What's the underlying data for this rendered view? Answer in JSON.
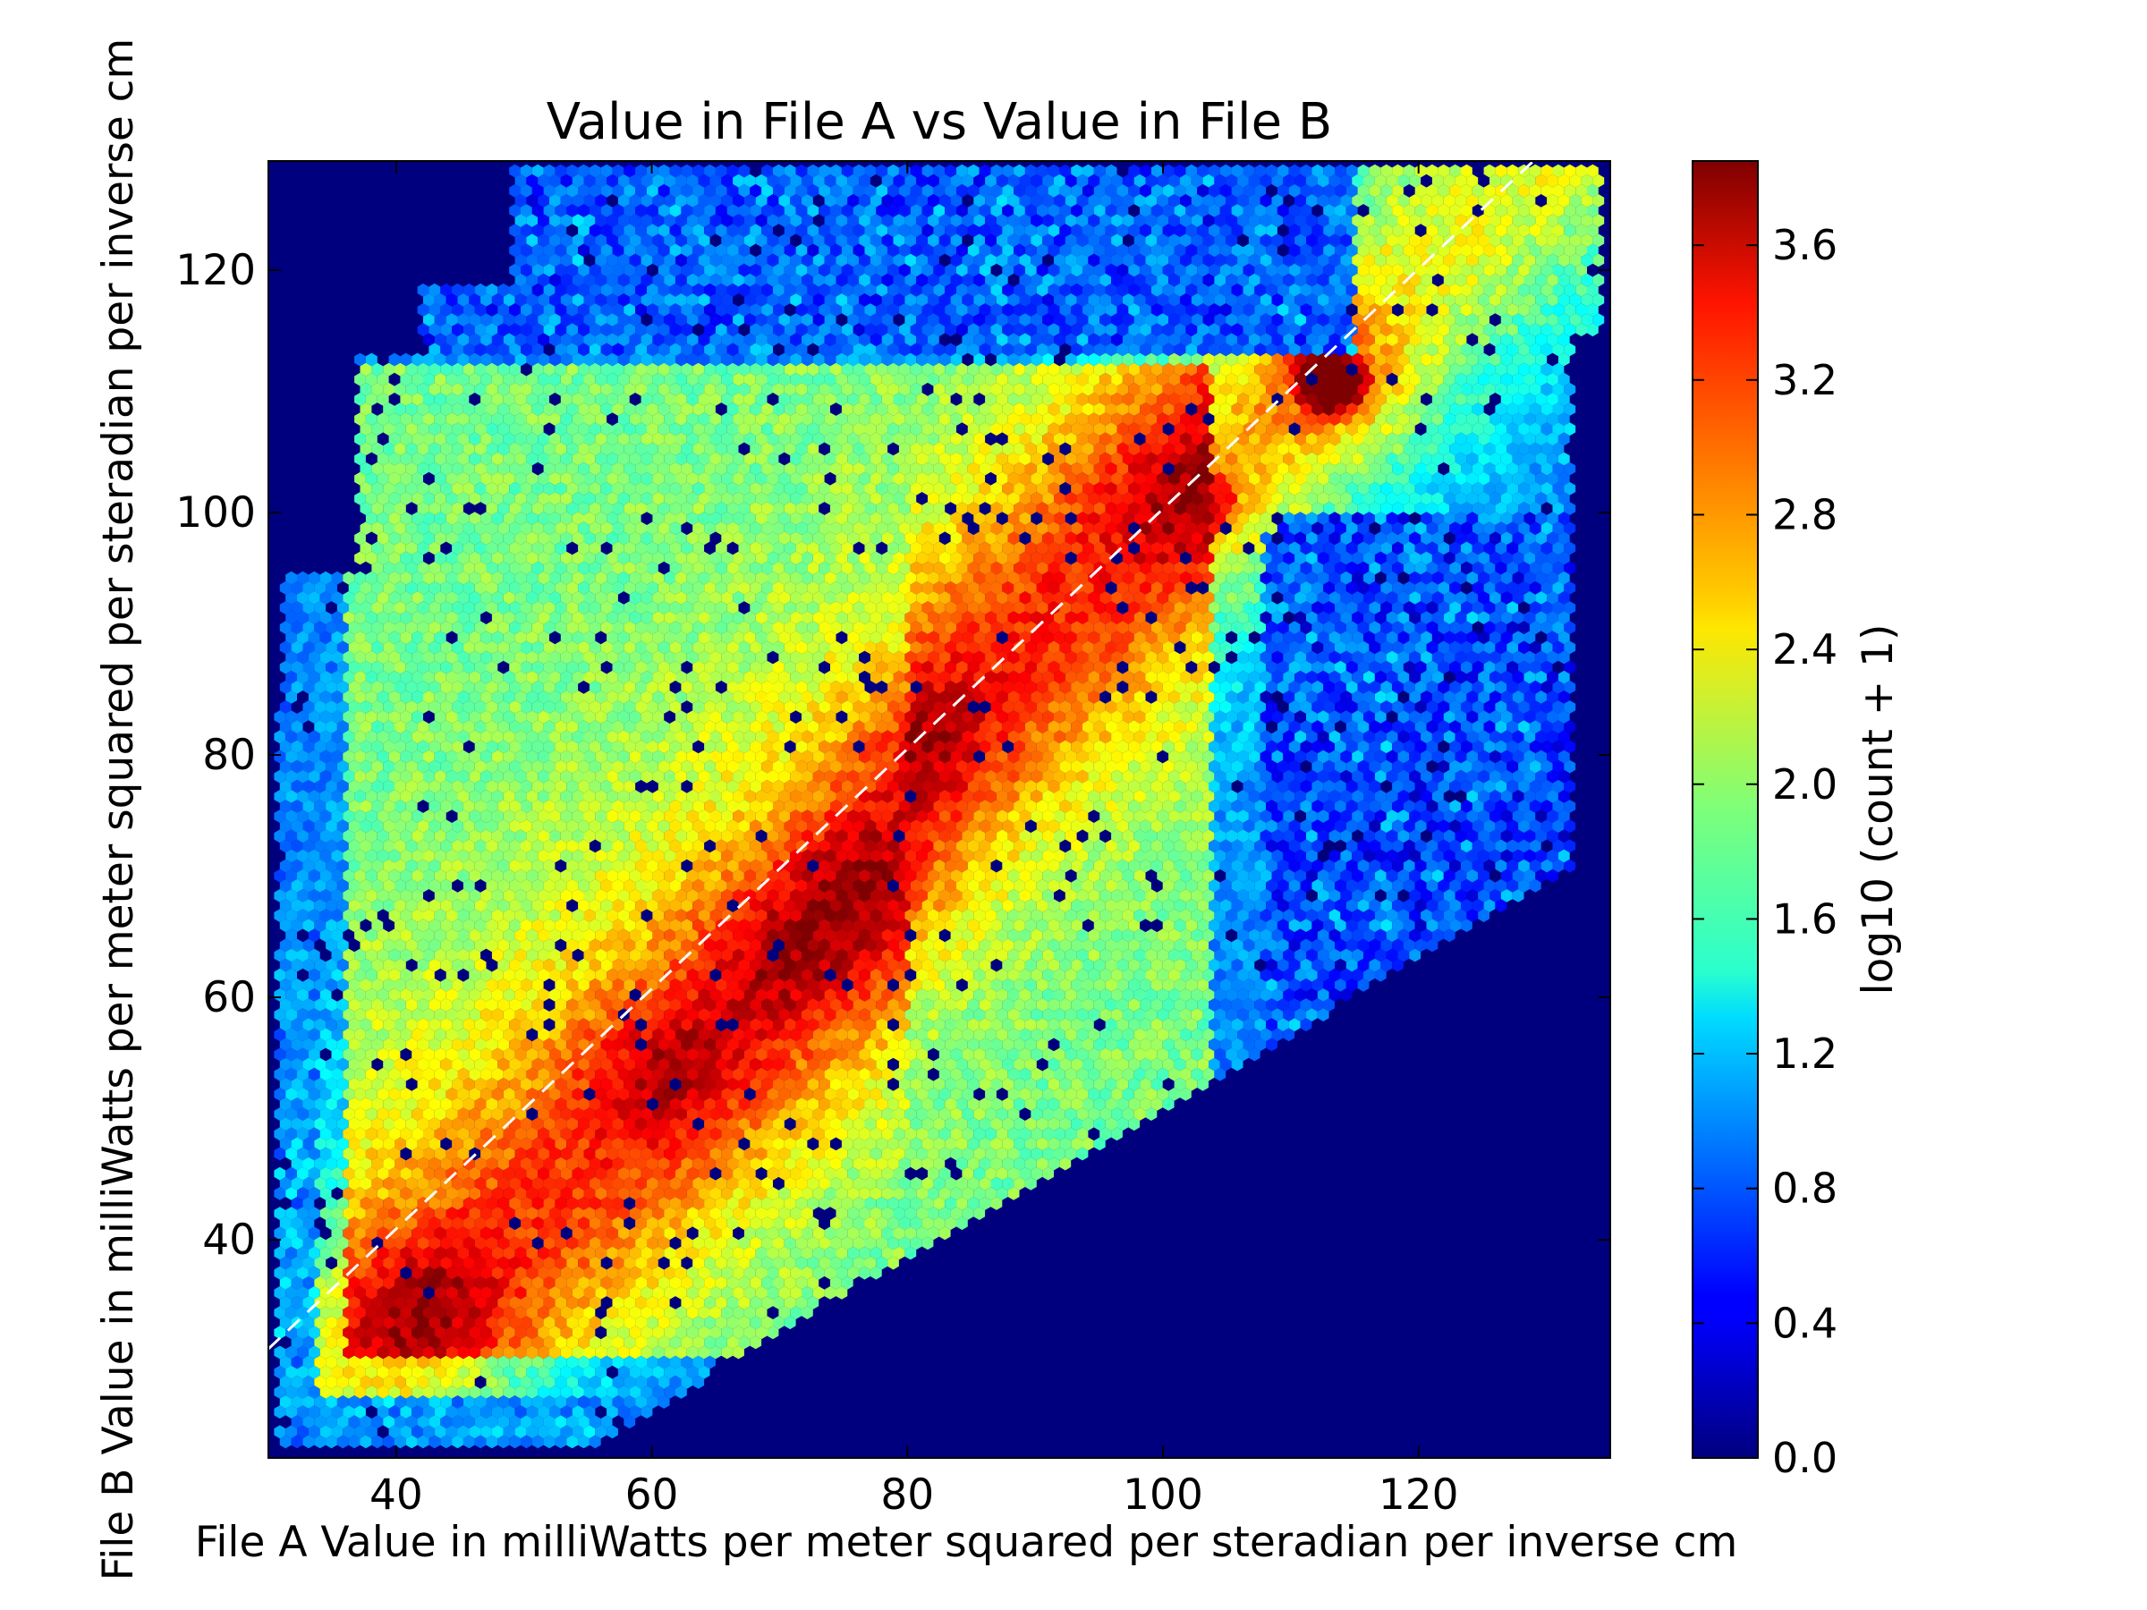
{
  "chart_data": {
    "type": "heatmap",
    "subtype": "hexbin",
    "title": "Value in File A vs Value in File B",
    "xlabel": "File A Value in milliWatts per meter squared per steradian per inverse cm",
    "ylabel": "File B Value in milliWatts per meter squared per steradian per inverse cm",
    "xlim": [
      30,
      135
    ],
    "ylim": [
      22,
      129
    ],
    "xticks": [
      40,
      60,
      80,
      100,
      120
    ],
    "yticks": [
      40,
      60,
      80,
      100,
      120
    ],
    "grid": false,
    "colormap": "jet",
    "background_color": "#00007f",
    "colorbar": {
      "label": "log10 (count + 1)",
      "range": [
        0,
        3.85
      ],
      "ticks": [
        "0.0",
        "0.4",
        "0.8",
        "1.2",
        "1.6",
        "2.0",
        "2.4",
        "2.8",
        "3.2",
        "3.6"
      ]
    },
    "reference_line": {
      "style": "dashed",
      "color": "#ffffff",
      "x": [
        30,
        130
      ],
      "y": [
        31,
        130
      ]
    },
    "density_peaks": [
      {
        "x": 42,
        "y": 34,
        "value": 3.3
      },
      {
        "x": 61,
        "y": 54,
        "value": 3.1
      },
      {
        "x": 70,
        "y": 63,
        "value": 3.1
      },
      {
        "x": 76,
        "y": 70,
        "value": 3.2
      },
      {
        "x": 81,
        "y": 81,
        "value": 3.0
      },
      {
        "x": 103,
        "y": 101,
        "value": 3.2
      },
      {
        "x": 113,
        "y": 111,
        "value": 3.7
      }
    ]
  }
}
